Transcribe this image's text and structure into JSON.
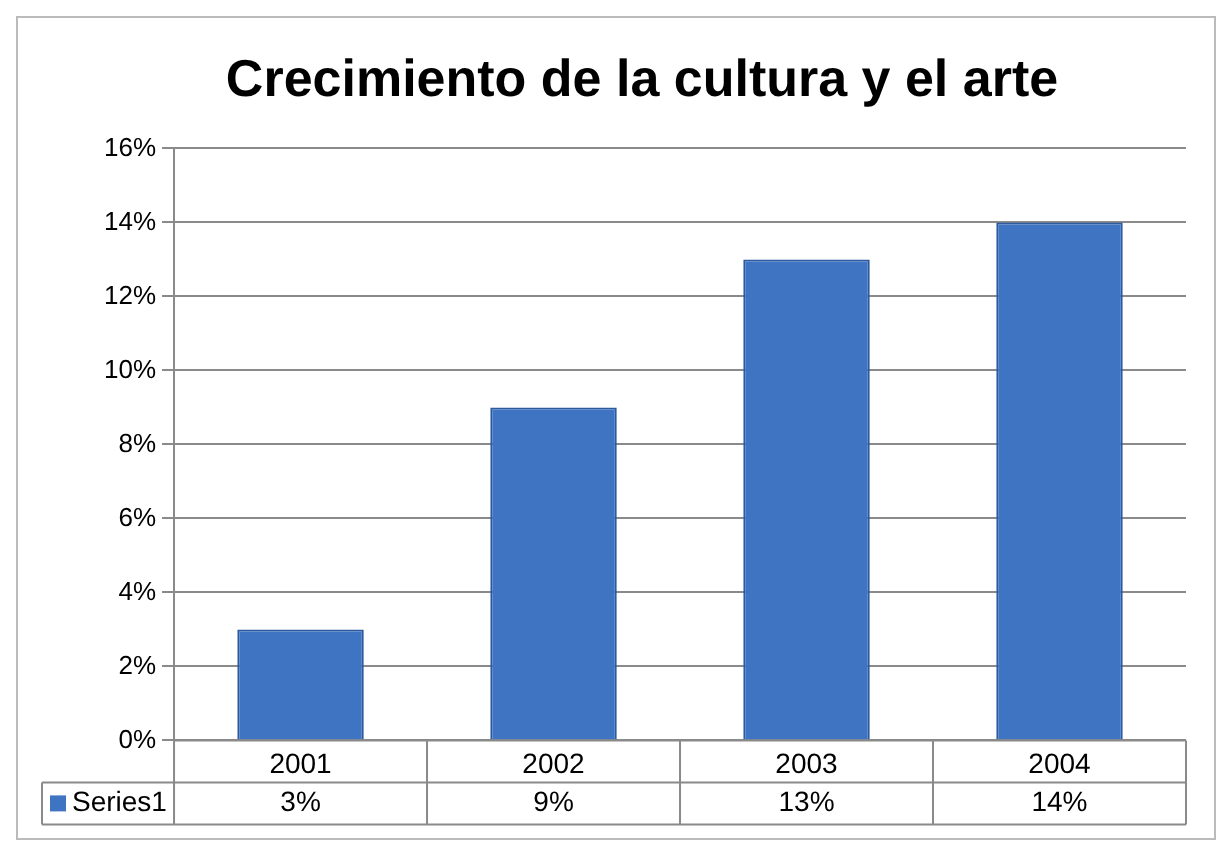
{
  "chart_data": {
    "type": "bar",
    "title": "Crecimiento de la cultura y el arte",
    "categories": [
      "2001",
      "2002",
      "2003",
      "2004"
    ],
    "series": [
      {
        "name": "Series1",
        "color": "#3f74c2",
        "values": [
          3,
          9,
          13,
          14
        ],
        "value_labels": [
          "3%",
          "9%",
          "13%",
          "14%"
        ]
      }
    ],
    "ylim": [
      0,
      16
    ],
    "yticks": [
      {
        "value": 0,
        "label": "0%"
      },
      {
        "value": 2,
        "label": "2%"
      },
      {
        "value": 4,
        "label": "4%"
      },
      {
        "value": 6,
        "label": "6%"
      },
      {
        "value": 8,
        "label": "8%"
      },
      {
        "value": 10,
        "label": "10%"
      },
      {
        "value": 12,
        "label": "12%"
      },
      {
        "value": 14,
        "label": "14%"
      },
      {
        "value": 16,
        "label": "16%"
      }
    ],
    "grid": "y",
    "legend": "bottom left"
  }
}
